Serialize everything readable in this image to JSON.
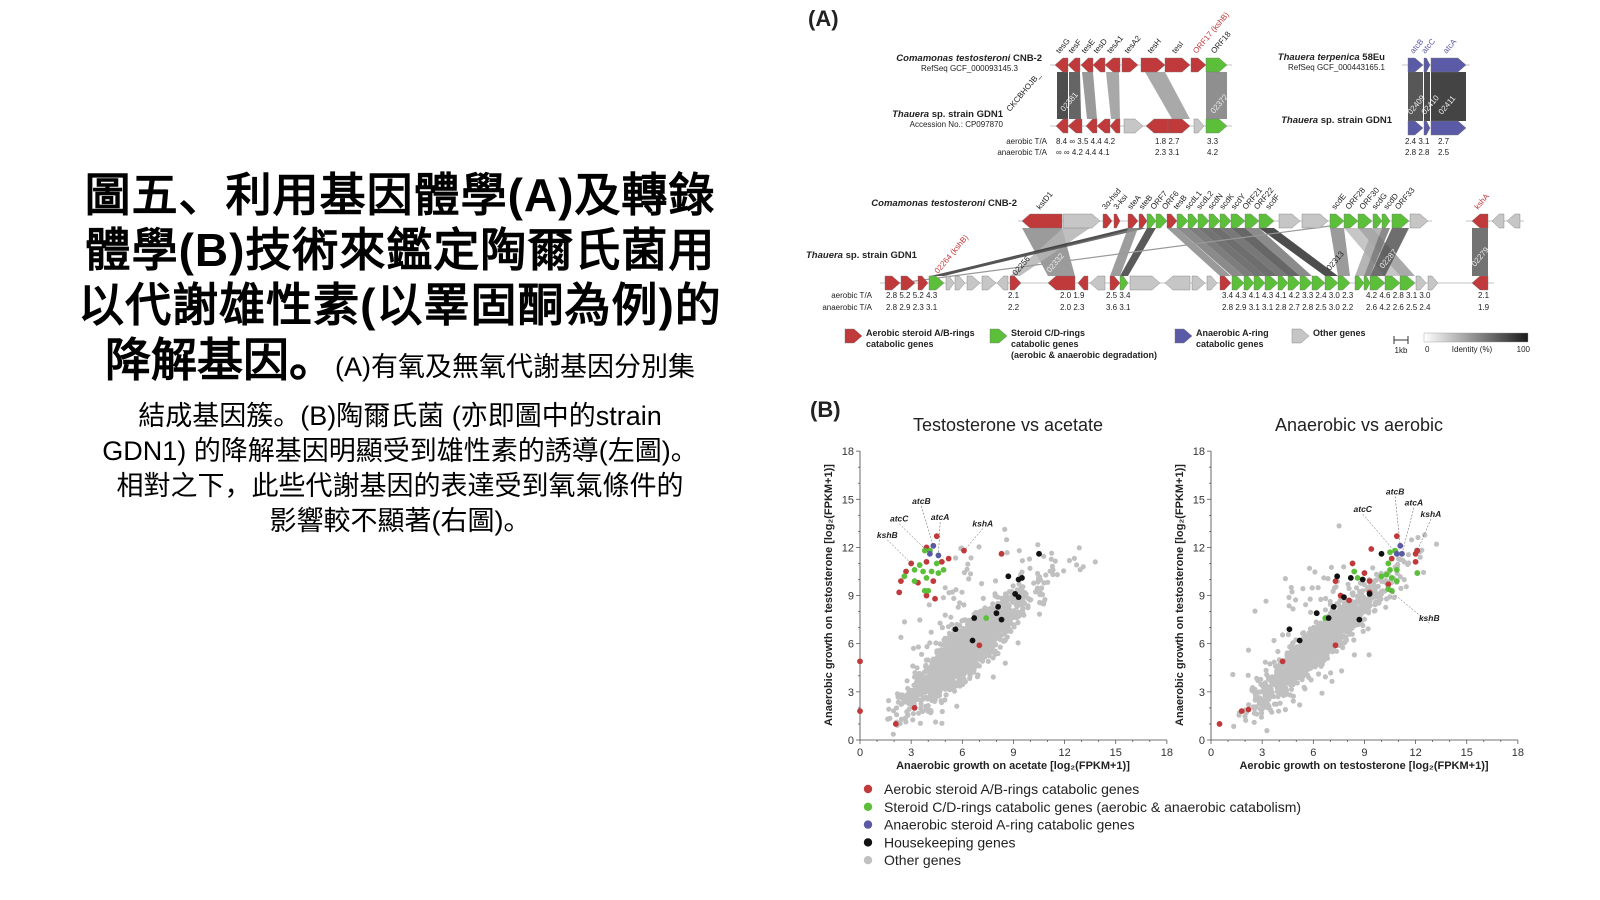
{
  "caption": {
    "title_lines": [
      "圖五、利用基因體學(A)及轉錄",
      "體學(B)技術來鑑定陶爾氏菌用",
      "以代謝雄性素(以睪固酮為例)的"
    ],
    "title_last": "降解基因。",
    "body_first": "(A)有氧及無氧代謝基因分別集",
    "body_lines": [
      "結成基因簇。(B)陶爾氏菌 (亦即圖中的strain",
      "GDN1) 的降解基因明顯受到雄性素的誘導(左圖)。",
      "相對之下，此些代謝基因的表達受到氧氣條件的",
      "影響較不顯著(右圖)。"
    ]
  },
  "colors": {
    "red": "#c0393b",
    "green": "#5cbf3a",
    "blue": "#5b5aa6",
    "gray": "#c6c6c6",
    "black": "#111111",
    "other": "#c0c0c0"
  },
  "panel_a": {
    "label": "(A)",
    "cluster1": {
      "top_name_italic": "Comamonas testosteroni",
      "top_name_rest": " CNB-2",
      "top_ref": "RefSeq GCF_000093145.3",
      "bottom_name_italic": "Thauera",
      "bottom_name_rest": " sp. strain GDN1",
      "bottom_ref": "Accession No.: CP097870",
      "genes": [
        "tesG",
        "tesF",
        "tesE",
        "tesD",
        "tesA1",
        "tesA2",
        "tesH",
        "tesI",
        "ORF17 (kshB)",
        "ORF18"
      ],
      "loci": [
        "CKCBHOJB_",
        "02381",
        "02372"
      ],
      "aerobic_label": "aerobic T/A",
      "anaerobic_label": "anaerobic T/A",
      "aerobic": [
        "8.4 ∞  3.5 4.4 4.2",
        "1.8  2.7",
        "3.3"
      ],
      "anaerobic": [
        "∞  ∞  4.2 4.4 4.1",
        "2.3  3.1",
        "4.2"
      ]
    },
    "cluster2": {
      "top_name_italic": "Thauera terpenica",
      "top_name_rest": " 58Eu",
      "top_ref": "RefSeq GCF_000443165.1",
      "bottom_name_italic": "Thauera",
      "bottom_name_rest": " sp. strain GDN1",
      "genes": [
        "atcB",
        "atcC",
        "atcA"
      ],
      "loci": [
        "02409",
        "02410",
        "02411"
      ],
      "aerobic": [
        "2.4 3.1",
        "2.7"
      ],
      "anaerobic": [
        "2.8 2.8",
        "2.5"
      ]
    },
    "cluster3": {
      "top_name_italic": "Comamonas testosteroni",
      "top_name_rest": " CNB-2",
      "bottom_name_italic": "Thauera",
      "bottom_name_rest": " sp. strain GDN1",
      "genes": [
        "kstD1",
        "3α-hsd",
        "3-ksi",
        "steA",
        "steB",
        "ORF7",
        "ORF6",
        "tesB",
        "scdL1",
        "scdL2",
        "scdN",
        "scdK",
        "scdY",
        "ORF21",
        "ORF22",
        "scdF",
        "scdE",
        "ORF28",
        "ORF30",
        "scdG",
        "scdD",
        "ORF33",
        "kshA"
      ],
      "loci": [
        "02264 (kshB)",
        "02256",
        "02332",
        "02313",
        "02287",
        "02279"
      ],
      "aerobic_label": "aerobic T/A",
      "anaerobic_label": "anaerobic T/A",
      "aerobic": [
        "2.8 5.2 5.2 4.3",
        "2.1",
        "2.0  1.9",
        "2.5 3.4",
        "3.4 4.3 4.1 4.3 4.1 4.2 3.3 2.4 3.0 2.3",
        "4.2 4.6 2.8 3.1 3.0",
        "2.1"
      ],
      "anaerobic": [
        "2.8 2.9 2.3 3.1",
        "2.2",
        "2.0  2.3",
        "3.6 3.1",
        "2.8 2.9 3.1 3.1 2.8 2.7 2.8 2.5 3.0 2.2",
        "2.6 4.2 2.6 2.5 2.4",
        "1.9"
      ]
    },
    "legend": [
      {
        "color": "red",
        "lines": [
          "Aerobic steroid A/B-rings",
          "catabolic genes"
        ]
      },
      {
        "color": "green",
        "lines": [
          "Steroid C/D-rings",
          "catabolic genes",
          "(aerobic & anaerobic degradation)"
        ]
      },
      {
        "color": "blue",
        "lines": [
          "Anaerobic A-ring",
          "catabolic genes"
        ]
      },
      {
        "color": "gray",
        "lines": [
          "Other genes"
        ]
      }
    ],
    "scale_label": "1kb",
    "identity": {
      "min": "0",
      "max": "100",
      "label": "Identity (%)"
    }
  },
  "panel_b": {
    "label": "(B)",
    "legend": [
      {
        "color": "red",
        "label": "Aerobic steroid A/B-rings catabolic genes"
      },
      {
        "color": "green",
        "label": "Steroid C/D-rings catabolic genes (aerobic & anaerobic catabolism)"
      },
      {
        "color": "blue",
        "label": "Anaerobic steroid A-ring catabolic genes"
      },
      {
        "color": "black",
        "label": "Housekeeping genes"
      },
      {
        "color": "other",
        "label": "Other genes"
      }
    ]
  },
  "chart_data": [
    {
      "type": "scatter",
      "title": "Testosterone vs acetate",
      "xlabel": "Anaerobic growth on acetate [log₂(FPKM+1)]",
      "ylabel": "Anaerobic growth on testosterone [log₂(FPKM+1)]",
      "xlim": [
        0,
        18
      ],
      "ylim": [
        0,
        18
      ],
      "xticks": [
        "0",
        "3",
        "6",
        "9",
        "12",
        "15",
        "18"
      ],
      "yticks": [
        "0",
        "3",
        "6",
        "9",
        "12",
        "15",
        "18"
      ],
      "other_genes_trend": {
        "slope": 0.9,
        "spread": 1.5,
        "note": "thousands of gray points along diagonal"
      },
      "series": [
        {
          "name": "red",
          "points": [
            [
              0,
              4.9
            ],
            [
              0,
              1.8
            ],
            [
              2.1,
              1
            ],
            [
              3.2,
              2
            ],
            [
              7,
              5.9
            ],
            [
              3,
              11
            ],
            [
              2.7,
              10.5
            ],
            [
              2.4,
              9.9
            ],
            [
              2.3,
              9.2
            ],
            [
              3.4,
              9.8
            ],
            [
              3.9,
              12
            ],
            [
              4.5,
              12.7
            ],
            [
              3.9,
              9
            ],
            [
              4.4,
              8.8
            ],
            [
              4.3,
              9.9
            ],
            [
              3.9,
              11.1
            ],
            [
              4.8,
              11.1
            ],
            [
              5.2,
              11.3
            ],
            [
              6.1,
              11.8
            ],
            [
              8.3,
              11.6
            ]
          ]
        },
        {
          "name": "green",
          "points": [
            [
              3.8,
              11.8
            ],
            [
              4.1,
              11.8
            ],
            [
              3.5,
              10.9
            ],
            [
              3.2,
              10.6
            ],
            [
              3.7,
              10.5
            ],
            [
              4.2,
              10.5
            ],
            [
              4.6,
              10.4
            ],
            [
              4.9,
              10.6
            ],
            [
              2.6,
              10.2
            ],
            [
              3.2,
              9.9
            ],
            [
              3.8,
              9.3
            ],
            [
              4,
              9.3
            ],
            [
              4.5,
              11
            ],
            [
              3.9,
              10.1
            ],
            [
              7.4,
              7.6
            ]
          ]
        },
        {
          "name": "blue",
          "points": [
            [
              4.3,
              12.1
            ],
            [
              4.1,
              11.6
            ],
            [
              4.6,
              11.5
            ]
          ]
        },
        {
          "name": "black",
          "points": [
            [
              10.5,
              11.6
            ],
            [
              8.7,
              10.2
            ],
            [
              9.3,
              10
            ],
            [
              9.5,
              10.1
            ],
            [
              9.1,
              9.1
            ],
            [
              9.3,
              8.9
            ],
            [
              8.1,
              8.3
            ],
            [
              8,
              7.9
            ],
            [
              8.3,
              7.5
            ],
            [
              6.7,
              7.6
            ],
            [
              5.6,
              6.9
            ],
            [
              6.6,
              6.2
            ]
          ]
        }
      ],
      "annotations": [
        {
          "text": "atcB",
          "at": [
            3.6,
            14.7
          ],
          "to": [
            4.3,
            12.1
          ]
        },
        {
          "text": "atcA",
          "at": [
            4.7,
            13.7
          ],
          "to": [
            4.6,
            11.5
          ]
        },
        {
          "text": "atcC",
          "at": [
            2.3,
            13.6
          ],
          "to": [
            4.1,
            11.6
          ]
        },
        {
          "text": "kshA",
          "at": [
            7.2,
            13.3
          ],
          "to": [
            6.1,
            11.8
          ]
        },
        {
          "text": "kshB",
          "at": [
            1.6,
            12.6
          ],
          "to": [
            3,
            11
          ]
        }
      ]
    },
    {
      "type": "scatter",
      "title": "Anaerobic vs aerobic",
      "xlabel": "Aerobic growth on testosterone [log₂(FPKM+1)]",
      "ylabel": "Anaerobic growth on testosterone [log₂(FPKM+1)]",
      "xlim": [
        0,
        18
      ],
      "ylim": [
        0,
        18
      ],
      "xticks": [
        "0",
        "3",
        "6",
        "9",
        "12",
        "15",
        "18"
      ],
      "yticks": [
        "0",
        "3",
        "6",
        "9",
        "12",
        "15",
        "18"
      ],
      "other_genes_trend": {
        "slope": 0.95,
        "spread": 1.2,
        "note": "thousands of gray points along diagonal"
      },
      "series": [
        {
          "name": "red",
          "points": [
            [
              0.5,
              1
            ],
            [
              1.8,
              1.8
            ],
            [
              2.2,
              1.9
            ],
            [
              4.2,
              4.9
            ],
            [
              7.3,
              5.9
            ],
            [
              9.4,
              11.9
            ],
            [
              10.9,
              12.7
            ],
            [
              8.3,
              11
            ],
            [
              9,
              10.4
            ],
            [
              9.3,
              9.9
            ],
            [
              9.3,
              9.2
            ],
            [
              7.3,
              9.9
            ],
            [
              7.6,
              9
            ],
            [
              8.1,
              8.7
            ],
            [
              10.6,
              11.3
            ],
            [
              10.4,
              9.7
            ],
            [
              12,
              11.6
            ],
            [
              12.1,
              11.8
            ],
            [
              12,
              11.1
            ]
          ]
        },
        {
          "name": "green",
          "points": [
            [
              10.5,
              11.7
            ],
            [
              10.8,
              11.8
            ],
            [
              10.4,
              11
            ],
            [
              10.5,
              10.6
            ],
            [
              10.3,
              10.3
            ],
            [
              10.6,
              10.1
            ],
            [
              10.9,
              10.6
            ],
            [
              10.4,
              9.4
            ],
            [
              10.6,
              9.3
            ],
            [
              10.9,
              9.9
            ],
            [
              12.1,
              10.4
            ],
            [
              8.4,
              10.5
            ],
            [
              8.6,
              10.1
            ],
            [
              6.7,
              7.6
            ],
            [
              10,
              10.2
            ]
          ]
        },
        {
          "name": "blue",
          "points": [
            [
              11.1,
              12.1
            ],
            [
              10.9,
              11.6
            ],
            [
              11.2,
              11.6
            ]
          ]
        },
        {
          "name": "black",
          "points": [
            [
              10,
              11.6
            ],
            [
              7.4,
              10.2
            ],
            [
              8.2,
              10.1
            ],
            [
              8.9,
              10
            ],
            [
              9.3,
              9.1
            ],
            [
              7.8,
              8.9
            ],
            [
              7.2,
              8.3
            ],
            [
              6.2,
              7.9
            ],
            [
              6.9,
              7.6
            ],
            [
              8.7,
              7.5
            ],
            [
              4.6,
              6.9
            ],
            [
              5.2,
              6.2
            ]
          ]
        }
      ],
      "annotations": [
        {
          "text": "atcB",
          "at": [
            10.8,
            15.3
          ],
          "to": [
            11.1,
            12.1
          ]
        },
        {
          "text": "atcA",
          "at": [
            11.9,
            14.6
          ],
          "to": [
            11.2,
            11.6
          ]
        },
        {
          "text": "atcC",
          "at": [
            8.9,
            14.2
          ],
          "to": [
            10.9,
            11.6
          ]
        },
        {
          "text": "kshA",
          "at": [
            12.9,
            13.9
          ],
          "to": [
            12.1,
            11.8
          ]
        },
        {
          "text": "kshB",
          "at": [
            12.8,
            7.4
          ],
          "to": [
            10.5,
            9.3
          ]
        }
      ]
    }
  ]
}
